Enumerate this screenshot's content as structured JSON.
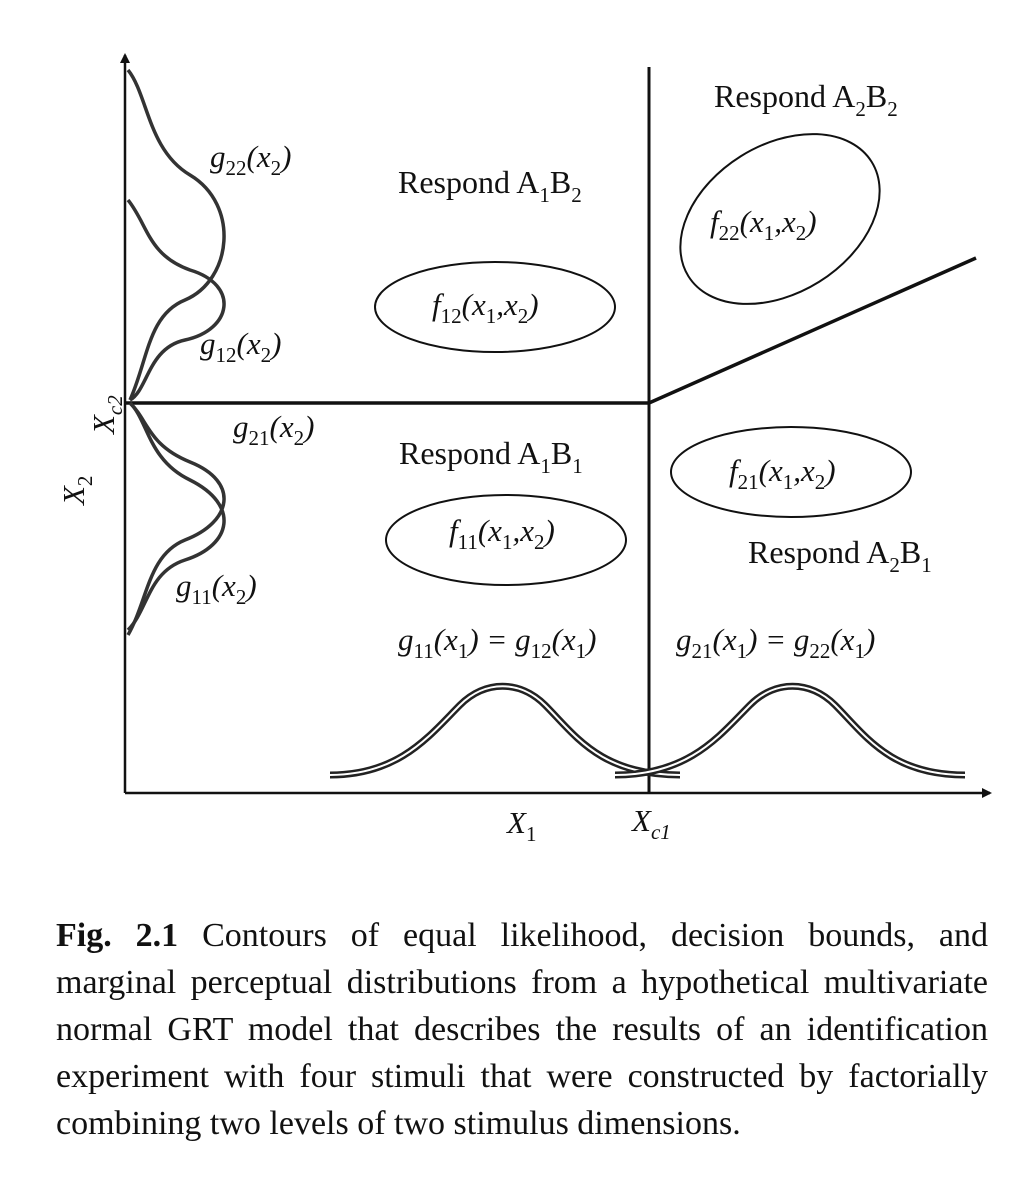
{
  "figure": {
    "regions": {
      "a2b2": {
        "pre": "Respond A",
        "s1": "2",
        "mid": "B",
        "s2": "2"
      },
      "a1b2": {
        "pre": "Respond A",
        "s1": "1",
        "mid": "B",
        "s2": "2"
      },
      "a1b1": {
        "pre": "Respond A",
        "s1": "1",
        "mid": "B",
        "s2": "1"
      },
      "a2b1": {
        "pre": "Respond A",
        "s1": "2",
        "mid": "B",
        "s2": "1"
      }
    },
    "joint": {
      "f22": {
        "f": "f",
        "sub": "22",
        "open": "(x",
        "s1": "1",
        "comma": ",x",
        "s2": "2",
        "close": ")"
      },
      "f12": {
        "f": "f",
        "sub": "12",
        "open": "(x",
        "s1": "1",
        "comma": ",x",
        "s2": "2",
        "close": ")"
      },
      "f21": {
        "f": "f",
        "sub": "21",
        "open": "(x",
        "s1": "1",
        "comma": ",x",
        "s2": "2",
        "close": ")"
      },
      "f11": {
        "f": "f",
        "sub": "11",
        "open": "(x",
        "s1": "1",
        "comma": ",x",
        "s2": "2",
        "close": ")"
      }
    },
    "marginals_y": {
      "g22": {
        "g": "g",
        "sub": "22",
        "open": "(x",
        "s": "2",
        "close": ")"
      },
      "g12": {
        "g": "g",
        "sub": "12",
        "open": "(x",
        "s": "2",
        "close": ")"
      },
      "g21": {
        "g": "g",
        "sub": "21",
        "open": "(x",
        "s": "2",
        "close": ")"
      },
      "g11": {
        "g": "g",
        "sub": "11",
        "open": "(x",
        "s": "2",
        "close": ")"
      }
    },
    "marginals_x": {
      "left": {
        "g1": "g",
        "sub1": "11",
        "arg1": "(x",
        "s1": "1",
        "mid": ") = g",
        "sub2": "12",
        "arg2": "(x",
        "s2": "1",
        "close": ")"
      },
      "right": {
        "g1": "g",
        "sub1": "21",
        "arg1": "(x",
        "s1": "1",
        "mid": ") = g",
        "sub2": "22",
        "arg2": "(x",
        "s2": "1",
        "close": ")"
      }
    },
    "axes": {
      "x1": {
        "base": "X",
        "sub": "1"
      },
      "x2": {
        "base": "X",
        "sub": "2"
      },
      "xc1": {
        "base": "X",
        "sub": "c1"
      },
      "xc2": {
        "base": "X",
        "sub": "c2"
      }
    }
  },
  "caption": {
    "label": "Fig. 2.1",
    "text": " Contours of equal likelihood, decision bounds, and marginal perceptual distributions from a hypothetical multivariate normal GRT model that describes the results of an identification experiment with four stimuli that were constructed by factorially combining two levels of two stimulus dimensions."
  }
}
